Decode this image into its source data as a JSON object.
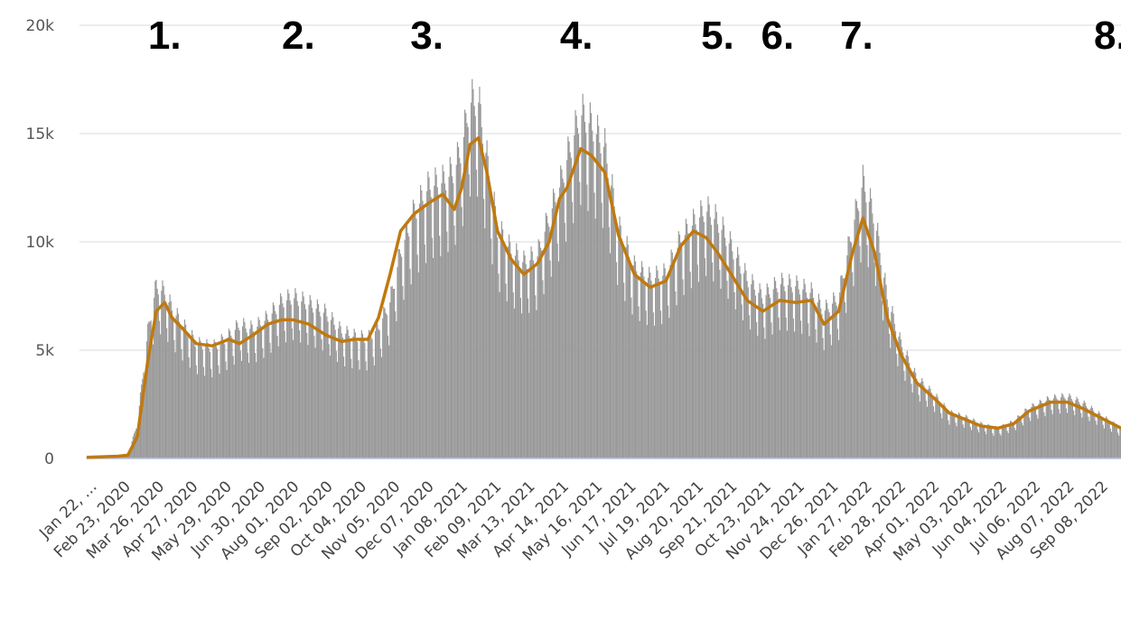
{
  "chart_data": {
    "type": "bar",
    "title": "",
    "xlabel": "",
    "ylabel": "",
    "ylim": [
      0,
      20000
    ],
    "yticks": [
      0,
      5000,
      10000,
      15000,
      20000
    ],
    "ytick_labels": [
      "0",
      "5k",
      "10k",
      "15k",
      "20k"
    ],
    "x_start_date": "2020-01-22",
    "x_end_date": "2022-09-30",
    "xtick_labels": [
      "Jan 22, …",
      "Feb 23, 2020",
      "Mar 26, 2020",
      "Apr 27, 2020",
      "May 29, 2020",
      "Jun 30, 2020",
      "Aug 01, 2020",
      "Sep 02, 2020",
      "Oct 04, 2020",
      "Nov 05, 2020",
      "Dec 07, 2020",
      "Jan 08, 2021",
      "Feb 09, 2021",
      "Mar 13, 2021",
      "Apr 14, 2021",
      "May 16, 2021",
      "Jun 17, 2021",
      "Jul 19, 2021",
      "Aug 20, 2021",
      "Sep 21, 2021",
      "Oct 23, 2021",
      "Nov 24, 2021",
      "Dec 26, 2021",
      "Jan 27, 2022",
      "Feb 28, 2022",
      "Apr 01, 2022",
      "May 03, 2022",
      "Jun 04, 2022",
      "Jul 06, 2022",
      "Aug 07, 2022",
      "Sep 08, 2022"
    ],
    "grid": true,
    "series": [
      {
        "kind": "daily-bars",
        "color": "#999999",
        "x": [
          "2020-01-22",
          "2020-02-20",
          "2020-03-01",
          "2020-03-10",
          "2020-03-20",
          "2020-03-28",
          "2020-04-05",
          "2020-04-12",
          "2020-04-22",
          "2020-05-05",
          "2020-05-20",
          "2020-06-05",
          "2020-06-15",
          "2020-06-28",
          "2020-07-12",
          "2020-07-25",
          "2020-08-05",
          "2020-08-20",
          "2020-09-05",
          "2020-09-20",
          "2020-10-02",
          "2020-10-15",
          "2020-10-25",
          "2020-11-05",
          "2020-11-15",
          "2020-11-28",
          "2020-12-12",
          "2020-12-25",
          "2021-01-05",
          "2021-01-12",
          "2021-01-20",
          "2021-01-28",
          "2021-02-05",
          "2021-02-15",
          "2021-02-28",
          "2021-03-12",
          "2021-03-25",
          "2021-04-05",
          "2021-04-15",
          "2021-04-22",
          "2021-05-05",
          "2021-05-15",
          "2021-05-28",
          "2021-06-10",
          "2021-06-25",
          "2021-07-10",
          "2021-07-25",
          "2021-08-08",
          "2021-08-20",
          "2021-09-01",
          "2021-09-12",
          "2021-09-25",
          "2021-10-10",
          "2021-10-25",
          "2021-11-10",
          "2021-11-25",
          "2021-12-10",
          "2021-12-22",
          "2022-01-05",
          "2022-01-18",
          "2022-01-28",
          "2022-02-08",
          "2022-02-20",
          "2022-03-05",
          "2022-03-20",
          "2022-04-05",
          "2022-04-20",
          "2022-05-05",
          "2022-05-20",
          "2022-06-05",
          "2022-06-20",
          "2022-07-05",
          "2022-07-25",
          "2022-08-10",
          "2022-08-25",
          "2022-09-10",
          "2022-09-30"
        ],
        "values": [
          50,
          100,
          150,
          1500,
          5500,
          7500,
          7200,
          6500,
          5800,
          5000,
          4800,
          5300,
          5800,
          5600,
          6100,
          6800,
          7000,
          6700,
          6300,
          5500,
          5300,
          5200,
          5700,
          6800,
          9000,
          10700,
          11800,
          12000,
          12500,
          13500,
          15500,
          15500,
          13000,
          10000,
          9000,
          8500,
          8800,
          10500,
          11800,
          13000,
          15000,
          14500,
          13500,
          10000,
          8300,
          7800,
          8000,
          9500,
          10200,
          10800,
          10300,
          9200,
          7800,
          7000,
          7600,
          7500,
          7200,
          6400,
          7000,
          10000,
          12000,
          10500,
          7000,
          5000,
          3500,
          2800,
          2000,
          1800,
          1500,
          1300,
          1600,
          2200,
          2600,
          2700,
          2400,
          1900,
          1300
        ]
      },
      {
        "kind": "moving-average-line",
        "color": "#C0790F",
        "x": [
          "2020-01-22",
          "2020-02-20",
          "2020-03-01",
          "2020-03-10",
          "2020-03-20",
          "2020-03-28",
          "2020-04-05",
          "2020-04-12",
          "2020-04-22",
          "2020-05-05",
          "2020-05-20",
          "2020-06-05",
          "2020-06-15",
          "2020-06-28",
          "2020-07-12",
          "2020-07-25",
          "2020-08-05",
          "2020-08-20",
          "2020-09-05",
          "2020-09-20",
          "2020-10-02",
          "2020-10-15",
          "2020-10-25",
          "2020-11-05",
          "2020-11-15",
          "2020-11-28",
          "2020-12-12",
          "2020-12-25",
          "2021-01-05",
          "2021-01-12",
          "2021-01-20",
          "2021-01-28",
          "2021-02-05",
          "2021-02-15",
          "2021-02-28",
          "2021-03-12",
          "2021-03-25",
          "2021-04-05",
          "2021-04-15",
          "2021-04-22",
          "2021-05-05",
          "2021-05-15",
          "2021-05-28",
          "2021-06-10",
          "2021-06-25",
          "2021-07-10",
          "2021-07-25",
          "2021-08-08",
          "2021-08-20",
          "2021-09-01",
          "2021-09-12",
          "2021-09-25",
          "2021-10-10",
          "2021-10-25",
          "2021-11-10",
          "2021-11-25",
          "2021-12-10",
          "2021-12-22",
          "2022-01-05",
          "2022-01-18",
          "2022-01-28",
          "2022-02-08",
          "2022-02-20",
          "2022-03-05",
          "2022-03-20",
          "2022-04-05",
          "2022-04-20",
          "2022-05-05",
          "2022-05-20",
          "2022-06-05",
          "2022-06-20",
          "2022-07-05",
          "2022-07-25",
          "2022-08-10",
          "2022-08-25",
          "2022-09-10",
          "2022-09-30"
        ],
        "values": [
          50,
          100,
          150,
          1000,
          4500,
          6800,
          7200,
          6500,
          6000,
          5300,
          5200,
          5500,
          5300,
          5700,
          6200,
          6400,
          6400,
          6200,
          5700,
          5400,
          5500,
          5500,
          6500,
          8500,
          10500,
          11300,
          11800,
          12200,
          11500,
          12500,
          14500,
          14800,
          13200,
          10500,
          9200,
          8500,
          9000,
          10000,
          12000,
          12500,
          14300,
          14000,
          13200,
          10300,
          8500,
          7900,
          8200,
          9800,
          10500,
          10200,
          9500,
          8500,
          7300,
          6800,
          7300,
          7200,
          7300,
          6200,
          6800,
          9500,
          11100,
          9500,
          6500,
          4800,
          3500,
          2800,
          2100,
          1800,
          1500,
          1400,
          1600,
          2200,
          2600,
          2600,
          2300,
          1900,
          1400
        ]
      }
    ],
    "annotations": [
      "1.",
      "2.",
      "3.",
      "4.",
      "5.",
      "6.",
      "7.",
      "8."
    ],
    "annotation_dates": [
      "2020-04-05",
      "2020-08-10",
      "2020-12-10",
      "2021-05-01",
      "2021-09-12",
      "2021-11-08",
      "2022-01-22",
      "2022-09-20"
    ]
  }
}
